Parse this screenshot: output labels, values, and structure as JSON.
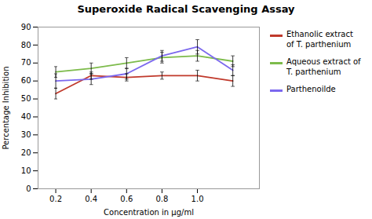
{
  "chart_data": {
    "type": "line",
    "title": "Superoxide Radical Scavenging Assay",
    "xlabel": "Concentration in µg/ml",
    "ylabel": "Percentage Inhibition",
    "x": [
      0.2,
      0.4,
      0.6,
      0.8,
      1.0,
      1.2
    ],
    "series": [
      {
        "name": "Ethanolic extract\nof T. parthenium",
        "color": "#c0392b",
        "values": [
          53,
          63,
          62,
          63,
          63,
          60
        ],
        "error": [
          3,
          2,
          2,
          2,
          3,
          3
        ]
      },
      {
        "name": "Aqueous extract of\nT. parthenium",
        "color": "#7dbb4b",
        "values": [
          65,
          67,
          70,
          73,
          74,
          71
        ],
        "error": [
          3,
          3,
          3,
          3,
          3,
          3
        ]
      },
      {
        "name": "Parthenoilde",
        "color": "#7b68ee",
        "values": [
          60,
          61,
          64,
          74,
          79,
          66
        ],
        "error": [
          4,
          3,
          3,
          3,
          4,
          3
        ]
      }
    ],
    "xlim": [
      0.1,
      1.35
    ],
    "xticks": [
      0.2,
      0.4,
      0.6,
      0.8,
      1
    ],
    "ylim": [
      0,
      90
    ],
    "yticks": [
      0,
      10,
      20,
      30,
      40,
      50,
      60,
      70,
      80,
      90
    ],
    "grid": false,
    "legend": "upper right"
  }
}
